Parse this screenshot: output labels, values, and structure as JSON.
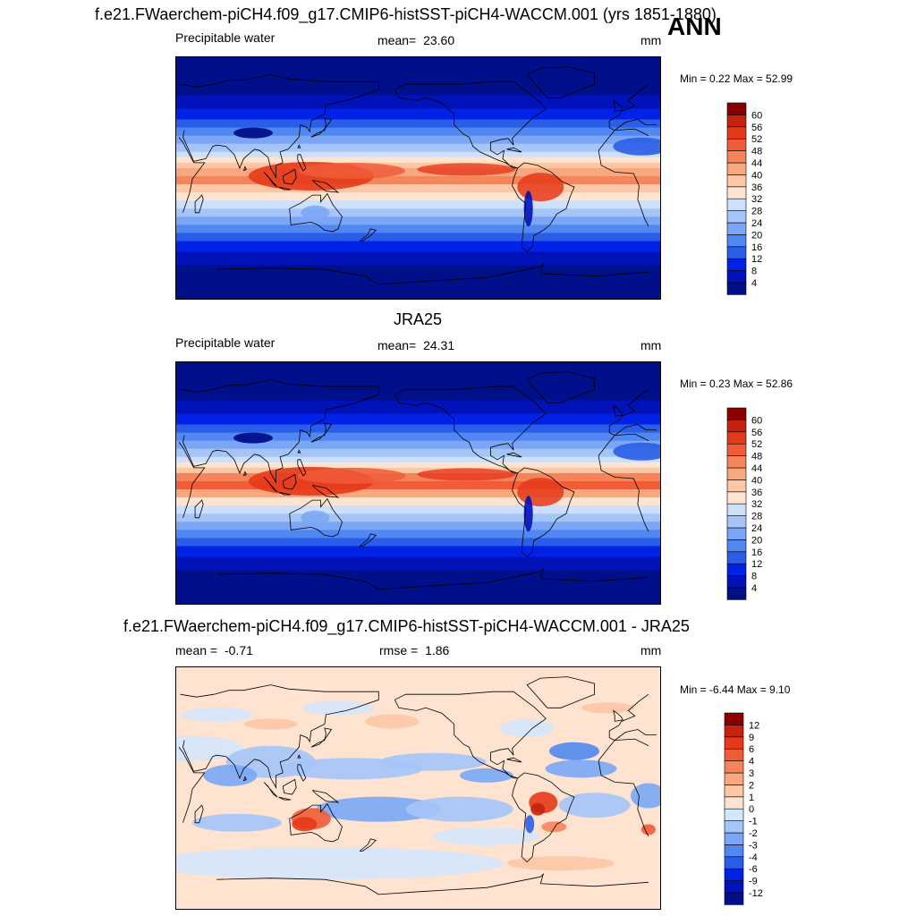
{
  "header": {
    "title": "f.e21.FWaerchem-piCH4.f09_g17.CMIP6-histSST-piCH4-WACCM.001 (yrs 1851-1880)",
    "season": "ANN"
  },
  "colors": {
    "abs_scale": [
      "#000f8a",
      "#0012b8",
      "#0022e6",
      "#2b5ee8",
      "#5087f0",
      "#7aa6f5",
      "#a5c4f8",
      "#cce0fb",
      "#fde3d0",
      "#fcc7a5",
      "#f9a77d",
      "#f5845a",
      "#f05c38",
      "#e53a1a",
      "#c52210",
      "#8a0000"
    ],
    "diff_scale": [
      "#000f8a",
      "#0012b8",
      "#0022e6",
      "#2b5ee8",
      "#5087f0",
      "#7aa6f5",
      "#a5c4f8",
      "#d4e6fb",
      "#fde3d0",
      "#fcc7a5",
      "#f9a77d",
      "#f5845a",
      "#f05c38",
      "#e53a1a",
      "#c52210",
      "#8a0000"
    ],
    "ocean_polar": "#000f8a",
    "land_line": "#000000"
  },
  "panels": [
    {
      "heading": "",
      "variable": "Precipitable water",
      "stat1_label": "mean=",
      "stat1_value": "23.60",
      "stat2_label": "",
      "stat2_value": "",
      "units": "mm",
      "minmax": "Min =   0.22 Max =  52.99"
    },
    {
      "heading": "JRA25",
      "variable": "Precipitable water",
      "stat1_label": "mean=",
      "stat1_value": "24.31",
      "stat2_label": "",
      "stat2_value": "",
      "units": "mm",
      "minmax": "Min =   0.23 Max =  52.86"
    },
    {
      "heading": "f.e21.FWaerchem-piCH4.f09_g17.CMIP6-histSST-piCH4-WACCM.001 - JRA25",
      "variable": "",
      "stat1_label": "mean =",
      "stat1_value": "-0.71",
      "stat2_label": "rmse =",
      "stat2_value": "1.86",
      "units": "mm",
      "minmax": "Min =  -6.44 Max =   9.10"
    }
  ],
  "chart_data": [
    {
      "type": "heatmap",
      "title": "f.e21.FWaerchem-piCH4.f09_g17.CMIP6-histSST-piCH4-WACCM.001 (yrs 1851-1880)",
      "variable": "Precipitable water",
      "units": "mm",
      "mean": 23.6,
      "min": 0.22,
      "max": 52.99,
      "colorbar_levels": [
        4,
        8,
        12,
        16,
        20,
        24,
        28,
        32,
        36,
        40,
        44,
        48,
        52,
        56,
        60
      ]
    },
    {
      "type": "heatmap",
      "title": "JRA25",
      "variable": "Precipitable water",
      "units": "mm",
      "mean": 24.31,
      "min": 0.23,
      "max": 52.86,
      "colorbar_levels": [
        4,
        8,
        12,
        16,
        20,
        24,
        28,
        32,
        36,
        40,
        44,
        48,
        52,
        56,
        60
      ]
    },
    {
      "type": "heatmap",
      "title": "f.e21.FWaerchem-piCH4.f09_g17.CMIP6-histSST-piCH4-WACCM.001 - JRA25",
      "units": "mm",
      "mean": -0.71,
      "rmse": 1.86,
      "min": -6.44,
      "max": 9.1,
      "colorbar_levels": [
        -12,
        -9,
        -6,
        -4,
        -3,
        -2,
        -1,
        0,
        1,
        2,
        3,
        4,
        6,
        9,
        12
      ]
    }
  ]
}
